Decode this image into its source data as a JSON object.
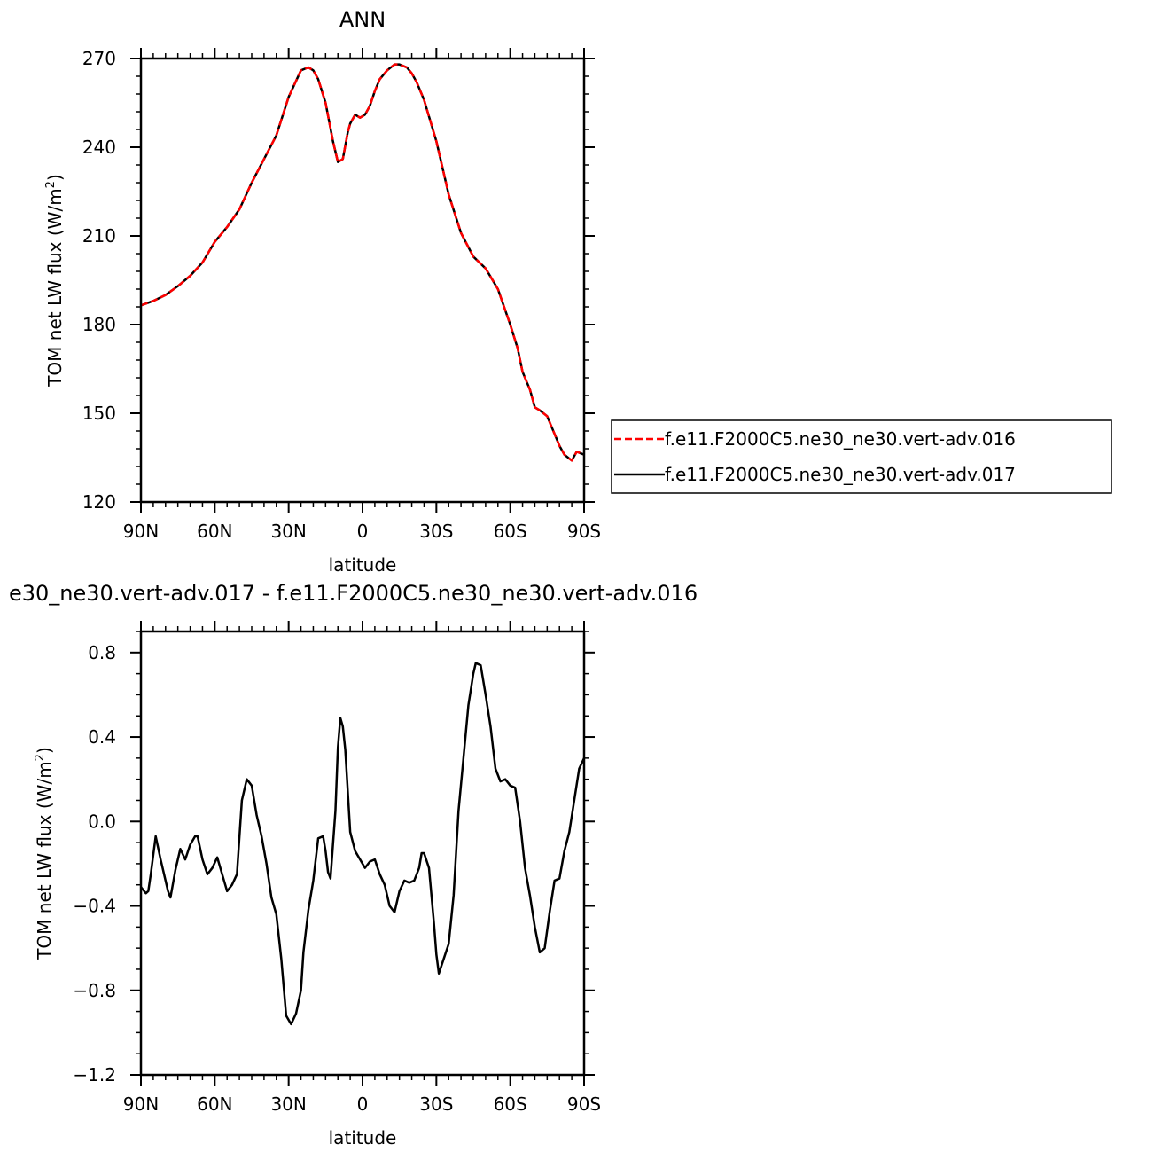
{
  "chart_data": [
    {
      "type": "line",
      "title": "ANN",
      "xlabel": "latitude",
      "ylabel": "TOM net LW flux (W/m²)",
      "ylabel_main": "TOM net LW flux (W/m",
      "ylabel_sup": "2",
      "ylabel_close": ")",
      "xlim": [
        -90,
        90
      ],
      "ylim": [
        120,
        270
      ],
      "x_ticks": [
        -90,
        -60,
        -30,
        0,
        30,
        60,
        90
      ],
      "x_tick_labels": [
        "90N",
        "60N",
        "30N",
        "0",
        "30S",
        "60S",
        "90S"
      ],
      "y_ticks": [
        120,
        150,
        180,
        210,
        240,
        270
      ],
      "y_tick_labels": [
        "120",
        "150",
        "180",
        "210",
        "240",
        "270"
      ],
      "legend_position": "right",
      "series": [
        {
          "name": "f.e11.F2000C5.ne30_ne30.vert-adv.016",
          "color": "#ff0000",
          "dash": "dashed",
          "x": [
            -90,
            -85,
            -80,
            -75,
            -70,
            -65,
            -60,
            -55,
            -50,
            -45,
            -40,
            -35,
            -30,
            -25,
            -22,
            -20,
            -18,
            -15,
            -12,
            -10,
            -8,
            -6,
            -5,
            -3,
            -1,
            1,
            3,
            5,
            7,
            10,
            13,
            15,
            18,
            20,
            22,
            25,
            30,
            35,
            40,
            45,
            50,
            55,
            60,
            63,
            65,
            68,
            70,
            72,
            75,
            78,
            80,
            82,
            85,
            87,
            90
          ],
          "y": [
            186.5,
            188,
            190,
            193,
            196.5,
            201,
            208,
            213,
            219,
            228,
            236,
            244,
            257,
            266,
            267,
            266,
            263,
            255,
            242,
            235,
            236,
            245,
            248,
            251,
            250,
            251,
            254,
            259,
            263,
            266,
            268,
            268,
            267,
            265,
            262,
            256,
            242,
            224,
            211,
            203,
            199,
            192,
            180,
            172,
            164,
            158,
            152,
            151,
            149,
            143,
            139,
            136,
            134,
            137,
            136
          ]
        },
        {
          "name": "f.e11.F2000C5.ne30_ne30.vert-adv.017",
          "color": "#000000",
          "dash": "solid",
          "x": [
            -90,
            -85,
            -80,
            -75,
            -70,
            -65,
            -60,
            -55,
            -50,
            -45,
            -40,
            -35,
            -30,
            -25,
            -22,
            -20,
            -18,
            -15,
            -12,
            -10,
            -8,
            -6,
            -5,
            -3,
            -1,
            1,
            3,
            5,
            7,
            10,
            13,
            15,
            18,
            20,
            22,
            25,
            30,
            35,
            40,
            45,
            50,
            55,
            60,
            63,
            65,
            68,
            70,
            72,
            75,
            78,
            80,
            82,
            85,
            87,
            90
          ],
          "y": [
            186.5,
            188,
            190,
            193,
            196.5,
            201,
            208,
            213,
            219,
            228,
            236,
            244,
            257,
            266,
            267,
            266,
            263,
            255,
            242,
            235,
            236,
            245,
            248,
            251,
            250,
            251,
            254,
            259,
            263,
            266,
            268,
            268,
            267,
            265,
            262,
            256,
            242,
            224,
            211,
            203,
            199,
            192,
            180,
            172,
            164,
            158,
            152,
            151,
            149,
            143,
            139,
            136,
            134,
            137,
            136
          ]
        }
      ]
    },
    {
      "type": "line",
      "title": "e30_ne30.vert-adv.017 - f.e11.F2000C5.ne30_ne30.vert-adv.016",
      "xlabel": "latitude",
      "ylabel": "TOM net LW flux (W/m²)",
      "ylabel_main": "TOM net LW flux (W/m",
      "ylabel_sup": "2",
      "ylabel_close": ")",
      "xlim": [
        -90,
        90
      ],
      "ylim": [
        -1.2,
        0.9
      ],
      "x_ticks": [
        -90,
        -60,
        -30,
        0,
        30,
        60,
        90
      ],
      "x_tick_labels": [
        "90N",
        "60N",
        "30N",
        "0",
        "30S",
        "60S",
        "90S"
      ],
      "y_ticks": [
        -1.2,
        -0.8,
        -0.4,
        0.0,
        0.4,
        0.8
      ],
      "y_tick_labels": [
        "−1.2",
        "−0.8",
        "−0.4",
        "0.0",
        "0.4",
        "0.8"
      ],
      "series": [
        {
          "color": "#000000",
          "x": [
            -90,
            -88,
            -87,
            -86,
            -84,
            -82,
            -80,
            -79,
            -78,
            -76,
            -74,
            -72,
            -70,
            -68,
            -67,
            -65,
            -63,
            -61,
            -59,
            -57,
            -55,
            -53,
            -51,
            -49,
            -47,
            -45,
            -43,
            -41,
            -39,
            -37,
            -35,
            -33,
            -31,
            -29,
            -27,
            -25,
            -24,
            -22,
            -20,
            -18,
            -16,
            -15,
            -14,
            -13,
            -11,
            -10,
            -9,
            -8,
            -7,
            -5,
            -3,
            -1,
            1,
            3,
            5,
            7,
            9,
            11,
            13,
            15,
            17,
            19,
            21,
            23,
            24,
            25,
            27,
            29,
            30,
            31,
            33,
            35,
            37,
            39,
            41,
            43,
            45,
            46,
            48,
            50,
            52,
            54,
            56,
            58,
            60,
            62,
            64,
            66,
            68,
            70,
            72,
            74,
            76,
            78,
            80,
            82,
            84,
            86,
            88,
            90
          ],
          "y": [
            -0.31,
            -0.34,
            -0.33,
            -0.25,
            -0.07,
            -0.18,
            -0.28,
            -0.33,
            -0.36,
            -0.23,
            -0.13,
            -0.18,
            -0.11,
            -0.07,
            -0.07,
            -0.18,
            -0.25,
            -0.22,
            -0.17,
            -0.25,
            -0.33,
            -0.3,
            -0.25,
            0.1,
            0.2,
            0.17,
            0.03,
            -0.07,
            -0.2,
            -0.36,
            -0.44,
            -0.65,
            -0.92,
            -0.96,
            -0.91,
            -0.8,
            -0.62,
            -0.42,
            -0.28,
            -0.08,
            -0.07,
            -0.14,
            -0.24,
            -0.27,
            0.05,
            0.35,
            0.49,
            0.45,
            0.34,
            -0.05,
            -0.14,
            -0.18,
            -0.22,
            -0.19,
            -0.18,
            -0.25,
            -0.3,
            -0.4,
            -0.43,
            -0.33,
            -0.28,
            -0.29,
            -0.28,
            -0.22,
            -0.15,
            -0.15,
            -0.22,
            -0.48,
            -0.63,
            -0.72,
            -0.65,
            -0.58,
            -0.35,
            0.05,
            0.3,
            0.55,
            0.7,
            0.75,
            0.74,
            0.6,
            0.45,
            0.25,
            0.19,
            0.2,
            0.17,
            0.16,
            0.0,
            -0.22,
            -0.35,
            -0.5,
            -0.62,
            -0.6,
            -0.43,
            -0.28,
            -0.27,
            -0.14,
            -0.05,
            0.1,
            0.25,
            0.3
          ]
        }
      ]
    }
  ]
}
